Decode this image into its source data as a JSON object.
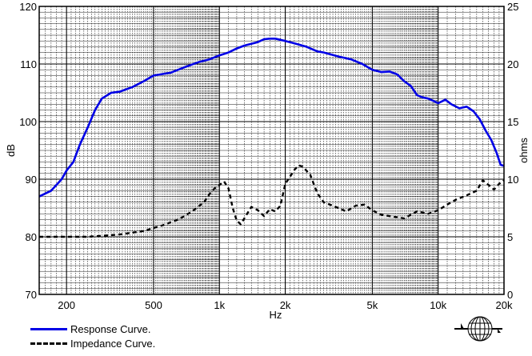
{
  "chart_data": {
    "type": "line",
    "xlabel": "Hz",
    "ylabel_left": "dB",
    "ylabel_right": "ohms",
    "x_scale": "log",
    "xlim": [
      150,
      20000
    ],
    "ylim_left": [
      70,
      120
    ],
    "ylim_right": [
      0,
      25
    ],
    "grid": true,
    "legend_placement": "bottom-left",
    "x_ticks": [
      {
        "value": 200,
        "label": "200"
      },
      {
        "value": 500,
        "label": "500"
      },
      {
        "value": 1000,
        "label": "1k"
      },
      {
        "value": 2000,
        "label": "2k"
      },
      {
        "value": 5000,
        "label": "5k"
      },
      {
        "value": 10000,
        "label": "10k"
      },
      {
        "value": 20000,
        "label": "20k"
      }
    ],
    "y_ticks_left": [
      70,
      80,
      90,
      100,
      110,
      120
    ],
    "y_ticks_right": [
      0,
      5,
      10,
      15,
      20,
      25
    ],
    "series": [
      {
        "name": "Response Curve.",
        "axis": "left",
        "color": "#0000e6",
        "style": "solid",
        "points": [
          [
            150,
            87
          ],
          [
            170,
            88
          ],
          [
            190,
            90
          ],
          [
            200,
            91.5
          ],
          [
            215,
            93
          ],
          [
            230,
            96
          ],
          [
            250,
            99
          ],
          [
            270,
            102
          ],
          [
            290,
            104
          ],
          [
            320,
            105
          ],
          [
            350,
            105.2
          ],
          [
            400,
            106
          ],
          [
            450,
            107
          ],
          [
            500,
            108
          ],
          [
            600,
            108.5
          ],
          [
            700,
            109.5
          ],
          [
            800,
            110.3
          ],
          [
            900,
            110.8
          ],
          [
            1000,
            111.5
          ],
          [
            1100,
            112
          ],
          [
            1200,
            112.7
          ],
          [
            1300,
            113.2
          ],
          [
            1500,
            113.8
          ],
          [
            1600,
            114.3
          ],
          [
            1700,
            114.4
          ],
          [
            1800,
            114.4
          ],
          [
            2000,
            114
          ],
          [
            2200,
            113.6
          ],
          [
            2500,
            113
          ],
          [
            2800,
            112.2
          ],
          [
            3000,
            112
          ],
          [
            3500,
            111.3
          ],
          [
            4000,
            110.8
          ],
          [
            4500,
            110
          ],
          [
            5000,
            109
          ],
          [
            5500,
            108.6
          ],
          [
            6000,
            108.7
          ],
          [
            6500,
            108.2
          ],
          [
            7000,
            107
          ],
          [
            7500,
            106.2
          ],
          [
            8000,
            104.6
          ],
          [
            8500,
            104.2
          ],
          [
            9000,
            104
          ],
          [
            9500,
            103.6
          ],
          [
            10000,
            103.2
          ],
          [
            10800,
            103.8
          ],
          [
            11500,
            103
          ],
          [
            12500,
            102.3
          ],
          [
            13500,
            102.6
          ],
          [
            14500,
            101.8
          ],
          [
            15500,
            100.4
          ],
          [
            16500,
            98.4
          ],
          [
            17500,
            96.8
          ],
          [
            18500,
            94.6
          ],
          [
            19300,
            92.5
          ],
          [
            20000,
            92.3
          ]
        ]
      },
      {
        "name": "Impedance Curve.",
        "axis": "right",
        "color": "#000000",
        "style": "dashed",
        "points": [
          [
            150,
            5
          ],
          [
            250,
            5
          ],
          [
            350,
            5.2
          ],
          [
            450,
            5.5
          ],
          [
            550,
            6
          ],
          [
            650,
            6.5
          ],
          [
            750,
            7.2
          ],
          [
            850,
            8
          ],
          [
            900,
            8.7
          ],
          [
            950,
            9.2
          ],
          [
            1000,
            9.5
          ],
          [
            1050,
            9.8
          ],
          [
            1100,
            9.2
          ],
          [
            1150,
            7.5
          ],
          [
            1200,
            6.4
          ],
          [
            1250,
            6.1
          ],
          [
            1300,
            6.6
          ],
          [
            1400,
            7.6
          ],
          [
            1500,
            7.3
          ],
          [
            1600,
            6.8
          ],
          [
            1700,
            7.4
          ],
          [
            1800,
            7.2
          ],
          [
            1900,
            7.7
          ],
          [
            2000,
            9.6
          ],
          [
            2100,
            10.2
          ],
          [
            2200,
            10.8
          ],
          [
            2300,
            11.2
          ],
          [
            2400,
            11.1
          ],
          [
            2600,
            10.4
          ],
          [
            2800,
            8.8
          ],
          [
            3000,
            8
          ],
          [
            3300,
            7.7
          ],
          [
            3800,
            7.2
          ],
          [
            4200,
            7.7
          ],
          [
            4600,
            7.8
          ],
          [
            5000,
            7.3
          ],
          [
            5500,
            6.9
          ],
          [
            6000,
            6.8
          ],
          [
            7000,
            6.6
          ],
          [
            8000,
            7.2
          ],
          [
            9000,
            7
          ],
          [
            10000,
            7.3
          ],
          [
            11000,
            7.8
          ],
          [
            12000,
            8.2
          ],
          [
            13500,
            8.6
          ],
          [
            15000,
            9
          ],
          [
            16000,
            9.9
          ],
          [
            17000,
            9.5
          ],
          [
            18000,
            9.1
          ],
          [
            19000,
            9.6
          ],
          [
            20000,
            9.9
          ]
        ]
      }
    ]
  }
}
